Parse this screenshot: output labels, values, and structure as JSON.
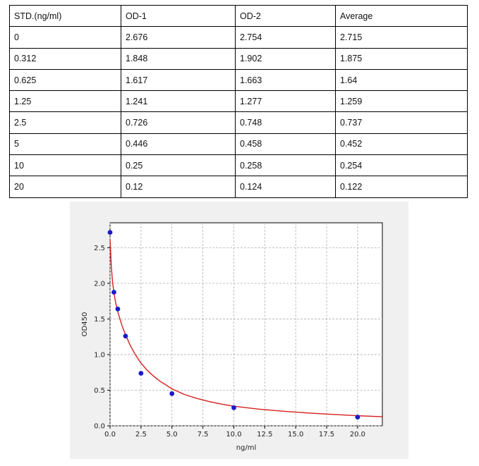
{
  "table": {
    "headers": [
      "STD.(ng/ml)",
      "OD-1",
      "OD-2",
      "Average"
    ],
    "rows": [
      [
        "0",
        "2.676",
        "2.754",
        "2.715"
      ],
      [
        "0.312",
        "1.848",
        "1.902",
        "1.875"
      ],
      [
        "0.625",
        "1.617",
        "1.663",
        "1.64"
      ],
      [
        "1.25",
        "1.241",
        "1.277",
        "1.259"
      ],
      [
        "2.5",
        "0.726",
        "0.748",
        "0.737"
      ],
      [
        "5",
        "0.446",
        "0.458",
        "0.452"
      ],
      [
        "10",
        "0.25",
        "0.258",
        "0.254"
      ],
      [
        "20",
        "0.12",
        "0.124",
        "0.122"
      ]
    ]
  },
  "chart_data": {
    "type": "scatter",
    "title": "",
    "xlabel": "ng/ml",
    "ylabel": "OD450",
    "xlim": [
      0,
      22
    ],
    "ylim": [
      0,
      2.85
    ],
    "xticks": [
      "0.0",
      "2.5",
      "5.0",
      "7.5",
      "10.0",
      "12.5",
      "15.0",
      "17.5",
      "20.0"
    ],
    "yticks": [
      "0.0",
      "0.5",
      "1.0",
      "1.5",
      "2.0",
      "2.5"
    ],
    "grid": true,
    "points": {
      "x": [
        0,
        0.312,
        0.625,
        1.25,
        2.5,
        5,
        10,
        20
      ],
      "y": [
        2.715,
        1.875,
        1.64,
        1.259,
        0.737,
        0.452,
        0.254,
        0.122
      ]
    },
    "fit_curve": {
      "x": [
        0,
        0.1,
        0.2,
        0.312,
        0.45,
        0.625,
        0.8,
        1.0,
        1.25,
        1.6,
        2.0,
        2.5,
        3.0,
        3.5,
        4.0,
        5.0,
        6.0,
        7.0,
        8.0,
        9.0,
        10.0,
        12.0,
        14.0,
        16.0,
        18.0,
        20.0,
        22.0
      ],
      "y": [
        2.62,
        2.24,
        2.02,
        1.87,
        1.73,
        1.6,
        1.5,
        1.39,
        1.28,
        1.14,
        1.01,
        0.88,
        0.78,
        0.7,
        0.63,
        0.52,
        0.44,
        0.385,
        0.34,
        0.305,
        0.275,
        0.235,
        0.205,
        0.18,
        0.16,
        0.142,
        0.128
      ]
    },
    "colors": {
      "points": "#1a1acc",
      "curve": "#d62020",
      "grid": "#b0b0b0",
      "background": "#f0f0f0"
    }
  }
}
